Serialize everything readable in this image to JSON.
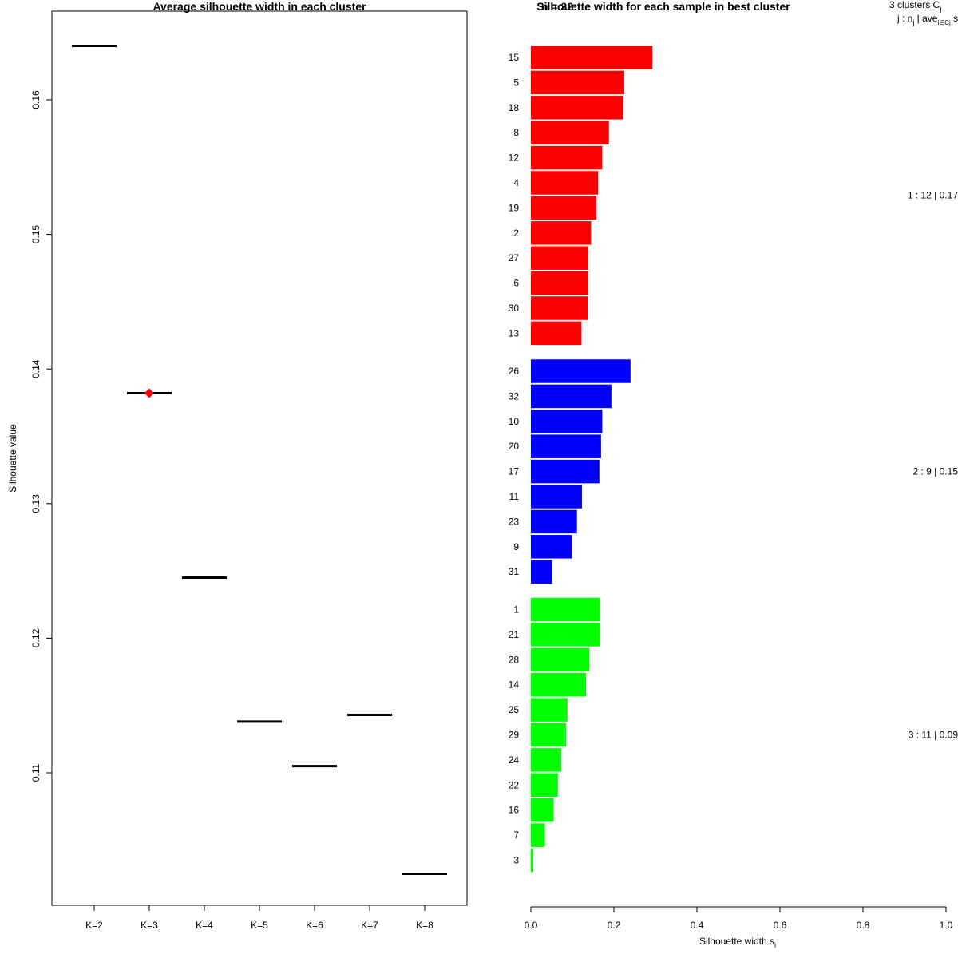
{
  "chart_data": [
    {
      "type": "scatter",
      "title": "Average silhouette width in each cluster",
      "xlabel": "",
      "ylabel": "Silhouette value",
      "categories": [
        "K=2",
        "K=3",
        "K=4",
        "K=5",
        "K=6",
        "K=7",
        "K=8"
      ],
      "values": [
        0.164,
        0.1382,
        0.1245,
        0.1138,
        0.1105,
        0.1143,
        0.1025
      ],
      "best_index": 1,
      "best_marker_color": "#ff0000",
      "yticks": [
        0.11,
        0.12,
        0.13,
        0.14,
        0.15,
        0.16
      ],
      "ylim": [
        0.1,
        0.166
      ]
    },
    {
      "type": "bar",
      "title": "Silhouette width for each sample in best cluster",
      "overlap_title": "n = 32",
      "xlabel": "Silhouette width s",
      "xlabel_sub": "i",
      "xlim": [
        0,
        1
      ],
      "xticks": [
        "0.0",
        "0.2",
        "0.4",
        "0.6",
        "0.8",
        "1.0"
      ],
      "legend_line1": "3 clusters  C",
      "legend_line1_sub": "j",
      "legend_line2": "j :  n",
      "legend_line2_sub": "j",
      "legend_line2_mid": " | ave",
      "legend_line2_sub2": "i∈Cj",
      "legend_line2_end": "  s",
      "clusters": [
        {
          "color": "#ff0000",
          "summary": "1 :  12  |  0.17",
          "samples": [
            "15",
            "5",
            "18",
            "8",
            "12",
            "4",
            "19",
            "2",
            "27",
            "6",
            "30",
            "13"
          ],
          "values": [
            0.293,
            0.225,
            0.223,
            0.188,
            0.172,
            0.162,
            0.158,
            0.145,
            0.138,
            0.138,
            0.137,
            0.122
          ]
        },
        {
          "color": "#0000ff",
          "summary": "2 :  9  |  0.15",
          "samples": [
            "26",
            "32",
            "10",
            "20",
            "17",
            "11",
            "23",
            "9",
            "31"
          ],
          "values": [
            0.24,
            0.194,
            0.172,
            0.169,
            0.165,
            0.123,
            0.111,
            0.099,
            0.051
          ]
        },
        {
          "color": "#00ff00",
          "summary": "3 :  11  |  0.09",
          "samples": [
            "1",
            "21",
            "28",
            "14",
            "25",
            "29",
            "24",
            "22",
            "16",
            "7",
            "3"
          ],
          "values": [
            0.167,
            0.167,
            0.141,
            0.133,
            0.088,
            0.085,
            0.073,
            0.065,
            0.055,
            0.034,
            0.006
          ]
        }
      ]
    }
  ]
}
